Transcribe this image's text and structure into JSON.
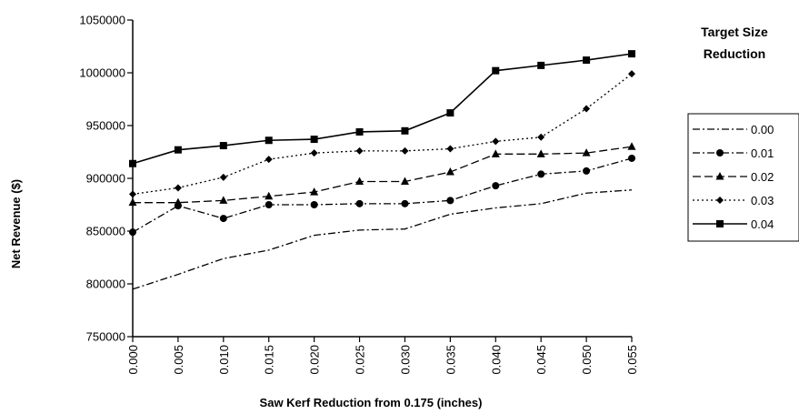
{
  "chart_data": {
    "type": "line",
    "title": "",
    "xlabel": "Saw Kerf Reduction from 0.175 (inches)",
    "ylabel": "Net Revenue ($)",
    "x": [
      "0.000",
      "0.005",
      "0.010",
      "0.015",
      "0.020",
      "0.025",
      "0.030",
      "0.035",
      "0.040",
      "0.045",
      "0.050",
      "0.055"
    ],
    "ylim": [
      750000,
      1050000
    ],
    "y_ticks": [
      "750000",
      "800000",
      "850000",
      "900000",
      "950000",
      "1000000",
      "1050000"
    ],
    "legend_title_lines": [
      "Target Size",
      "Reduction"
    ],
    "legend_position": "right",
    "grid": false,
    "series": [
      {
        "name": "0.00",
        "marker": "none",
        "dash": "dash-dot",
        "values": [
          795000,
          809000,
          824000,
          832000,
          846000,
          851000,
          852000,
          866000,
          872000,
          876000,
          886000,
          889000
        ]
      },
      {
        "name": "0.01",
        "marker": "circle",
        "dash": "dash-dot",
        "values": [
          849000,
          874000,
          862000,
          875000,
          875000,
          876000,
          876000,
          879000,
          893000,
          904000,
          907000,
          919000
        ]
      },
      {
        "name": "0.02",
        "marker": "triangle",
        "dash": "long-dash",
        "values": [
          877000,
          877000,
          879000,
          883000,
          887000,
          897000,
          897000,
          906000,
          923000,
          923000,
          924000,
          930000
        ]
      },
      {
        "name": "0.03",
        "marker": "diamond",
        "dash": "dot",
        "values": [
          885000,
          891000,
          901000,
          918000,
          924000,
          926000,
          926000,
          928000,
          935000,
          939000,
          966000,
          999000
        ]
      },
      {
        "name": "0.04",
        "marker": "square",
        "dash": "solid",
        "values": [
          914000,
          927000,
          931000,
          936000,
          937000,
          944000,
          945000,
          962000,
          1002000,
          1007000,
          1012000,
          1018000
        ]
      }
    ]
  }
}
